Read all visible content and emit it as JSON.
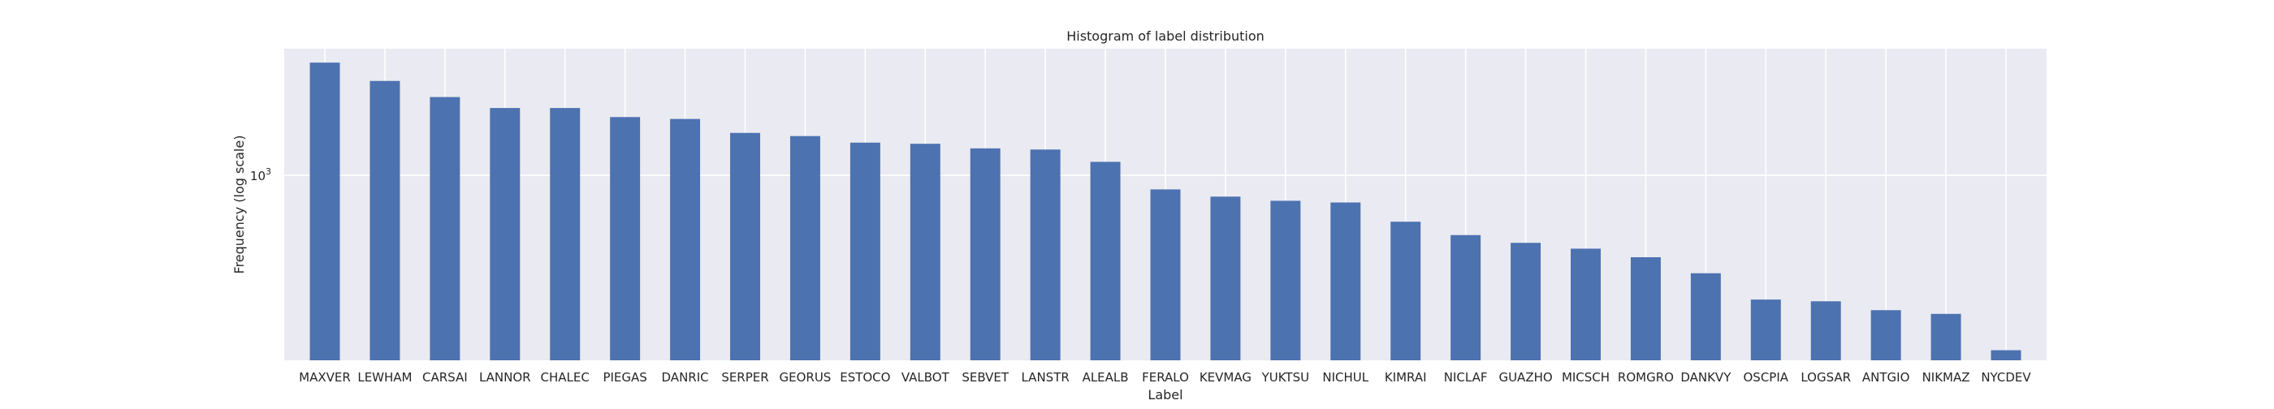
{
  "chart_data": {
    "type": "bar",
    "title": "Histogram of label distribution",
    "xlabel": "Label",
    "ylabel": "Frequency (log scale)",
    "yscale": "log",
    "ylim": [
      270,
      2450
    ],
    "yticks": [
      {
        "value": 1000,
        "base": "10",
        "exp": "3"
      }
    ],
    "grid": true,
    "background": "#eaeaf2",
    "bar_color": "#4c72b0",
    "categories": [
      "MAXVER",
      "LEWHAM",
      "CARSAI",
      "LANNOR",
      "CHALEC",
      "PIEGAS",
      "DANRIC",
      "SERPER",
      "GEORUS",
      "ESTOCO",
      "VALBOT",
      "SEBVET",
      "LANSTR",
      "ALEALB",
      "FERALO",
      "KEVMAG",
      "YUKTSU",
      "NICHUL",
      "KIMRAI",
      "NICLAF",
      "GUAZHO",
      "MICSCH",
      "ROMGRO",
      "DANKVY",
      "OSCPIA",
      "LOGSAR",
      "ANTGIO",
      "NIKMAZ",
      "NYCDEV"
    ],
    "values": [
      2220,
      1950,
      1740,
      1610,
      1610,
      1510,
      1490,
      1350,
      1320,
      1260,
      1250,
      1210,
      1200,
      1100,
      905,
      860,
      835,
      825,
      720,
      655,
      620,
      595,
      560,
      500,
      415,
      410,
      385,
      375,
      290
    ]
  }
}
